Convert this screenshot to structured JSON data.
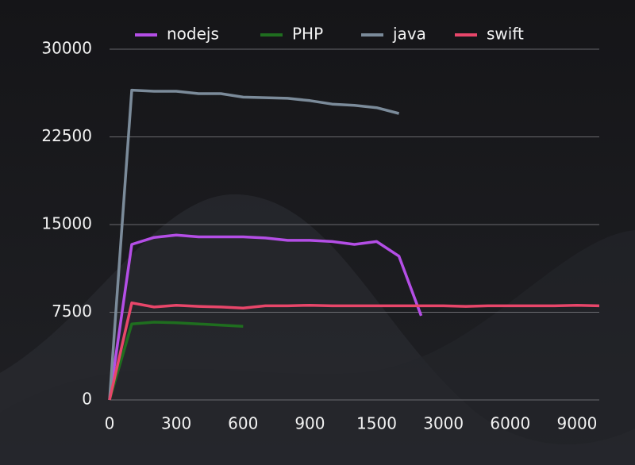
{
  "chart_data": {
    "type": "line",
    "categories": [
      "0",
      null,
      null,
      "300",
      null,
      null,
      "600",
      null,
      null,
      "900",
      null,
      null,
      "1500",
      null,
      null,
      "3000",
      null,
      null,
      "6000",
      null,
      null,
      "9000",
      null
    ],
    "series": [
      {
        "name": "nodejs",
        "color": "#b44ee6",
        "values": [
          0,
          13300,
          13900,
          14100,
          13950,
          13950,
          13950,
          13850,
          13650,
          13650,
          13550,
          13300,
          13550,
          12300,
          7200,
          null,
          null,
          null,
          null,
          null,
          null,
          null,
          null
        ]
      },
      {
        "name": "PHP",
        "color": "#1f6e1f",
        "values": [
          0,
          6500,
          6650,
          6600,
          6500,
          6400,
          6300,
          null,
          null,
          null,
          null,
          null,
          null,
          null,
          null,
          null,
          null,
          null,
          null,
          null,
          null,
          null,
          null
        ]
      },
      {
        "name": "java",
        "color": "#7b8b9a",
        "values": [
          0,
          26500,
          26400,
          26400,
          26200,
          26200,
          25900,
          25850,
          25800,
          25600,
          25300,
          25200,
          25000,
          24500,
          null,
          null,
          null,
          null,
          null,
          null,
          null,
          null,
          null
        ]
      },
      {
        "name": "swift",
        "color": "#e8466a",
        "values": [
          0,
          8300,
          7950,
          8100,
          8000,
          7950,
          7850,
          8050,
          8050,
          8100,
          8050,
          8050,
          8050,
          8050,
          8050,
          8050,
          8000,
          8050,
          8050,
          8050,
          8050,
          8100,
          8050
        ]
      }
    ],
    "ylim": [
      0,
      30000
    ],
    "yticks": [
      0,
      7500,
      15000,
      22500,
      30000
    ],
    "grid": true,
    "legend": "top"
  }
}
